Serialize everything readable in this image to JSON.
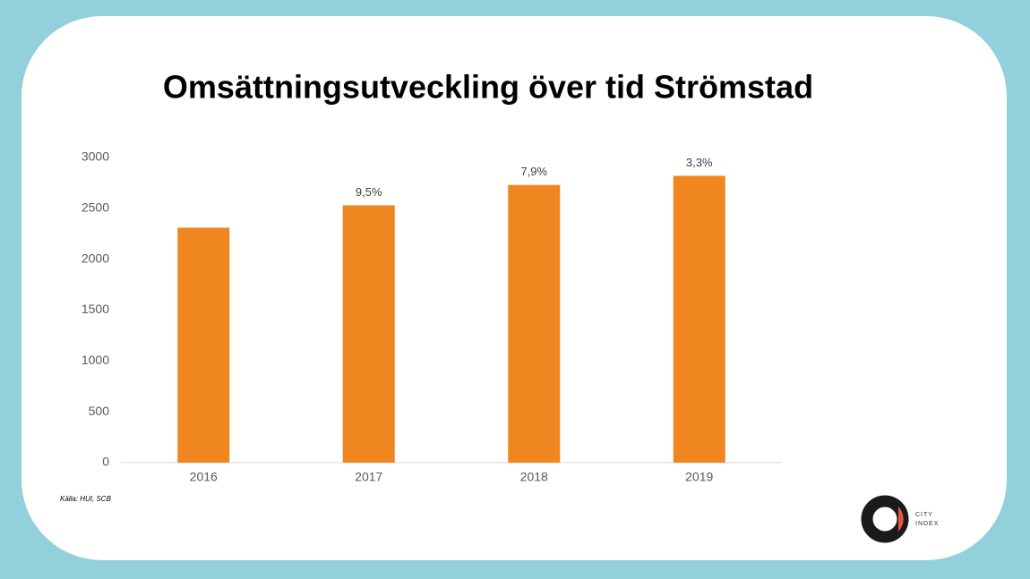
{
  "chart_data": {
    "type": "bar",
    "title": "Omsättningsutveckling över tid Strömstad",
    "categories": [
      "2016",
      "2017",
      "2018",
      "2019"
    ],
    "values": [
      2310,
      2530,
      2730,
      2820
    ],
    "color": "#f0861f",
    "ylim": [
      0,
      3000
    ],
    "yticks": [
      0,
      500,
      1000,
      1500,
      2000,
      2500,
      3000
    ],
    "grid": false,
    "growth": {
      "values": [
        null,
        9.5,
        7.9,
        3.3
      ],
      "value_labels": [
        null,
        "9,5%",
        "7,9%",
        "3,3%"
      ]
    },
    "source": "Källa: HUI, SCB"
  },
  "logo": {
    "line1": "CITY",
    "line2": "INDEX"
  }
}
